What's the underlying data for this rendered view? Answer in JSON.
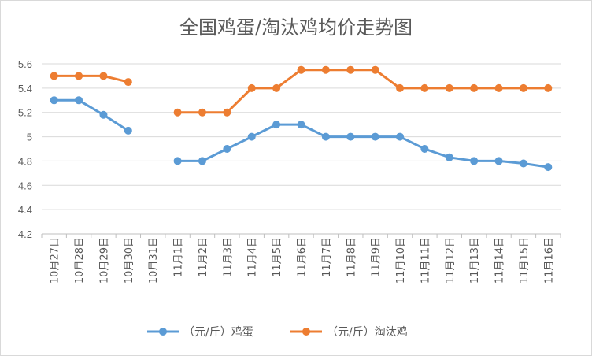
{
  "chart_data": {
    "type": "line",
    "title": "全国鸡蛋/淘汰鸡均价走势图",
    "categories": [
      "10月27日",
      "10月28日",
      "10月29日",
      "10月30日",
      "10月31日",
      "11月1日",
      "11月2日",
      "11月3日",
      "11月4日",
      "11月5日",
      "11月6日",
      "11月7日",
      "11月8日",
      "11月9日",
      "11月10日",
      "11月11日",
      "11月12日",
      "11月13日",
      "11月14日",
      "11月15日",
      "11月16日"
    ],
    "series": [
      {
        "name": "（元/斤）鸡蛋",
        "color": "#5b9bd5",
        "values": [
          5.3,
          5.3,
          5.18,
          5.05,
          null,
          4.8,
          4.8,
          4.9,
          5.0,
          5.1,
          5.1,
          5.0,
          5.0,
          5.0,
          5.0,
          4.9,
          4.83,
          4.8,
          4.8,
          4.78,
          4.75
        ]
      },
      {
        "name": "（元/斤）淘汰鸡",
        "color": "#ed7d31",
        "values": [
          5.5,
          5.5,
          5.5,
          5.45,
          null,
          5.2,
          5.2,
          5.2,
          5.4,
          5.4,
          5.55,
          5.55,
          5.55,
          5.55,
          5.4,
          5.4,
          5.4,
          5.4,
          5.4,
          5.4,
          5.4
        ]
      }
    ],
    "ylim": [
      4.2,
      5.6
    ],
    "yticks": [
      4.2,
      4.4,
      4.6,
      4.8,
      5,
      5.2,
      5.4,
      5.6
    ],
    "ytick_labels": [
      "4.2",
      "4.4",
      "4.6",
      "4.8",
      "5",
      "5.2",
      "5.4",
      "5.6"
    ],
    "xlabel": "",
    "ylabel": "",
    "grid": "horizontal",
    "legend": "bottom"
  }
}
